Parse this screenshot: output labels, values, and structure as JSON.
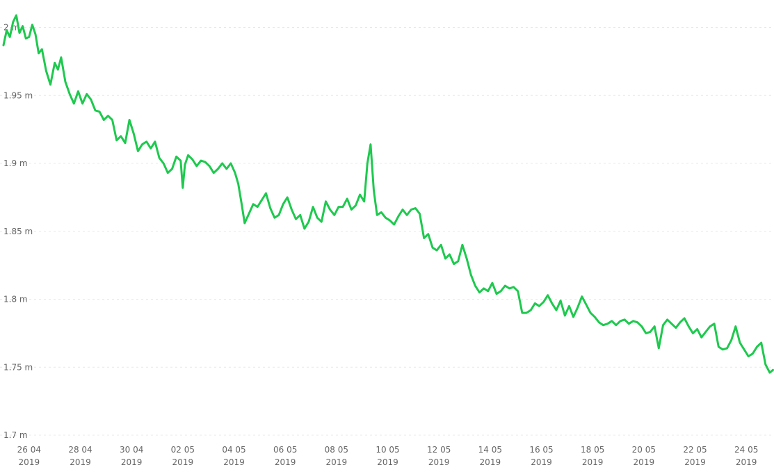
{
  "chart_data": {
    "type": "line",
    "title": "",
    "xlabel": "",
    "ylabel": "",
    "grid": true,
    "legend": "none",
    "colors": {
      "series": "#1ec94e",
      "grid": "#e8e8e8",
      "tick_text": "#666666"
    },
    "ylim": [
      1.7,
      2.01
    ],
    "xlim": [
      "2019-04-25",
      "2019-05-25"
    ],
    "y_ticks": [
      {
        "value": 1.7,
        "label": "1.7 m"
      },
      {
        "value": 1.75,
        "label": "1.75 m"
      },
      {
        "value": 1.8,
        "label": "1.8 m"
      },
      {
        "value": 1.85,
        "label": "1.85 m"
      },
      {
        "value": 1.9,
        "label": "1.9 m"
      },
      {
        "value": 1.95,
        "label": "1.95 m"
      },
      {
        "value": 2.0,
        "label": "2 m"
      }
    ],
    "x_ticks": [
      {
        "date": "2019-04-26",
        "day_month": "26 04",
        "year": "2019"
      },
      {
        "date": "2019-04-28",
        "day_month": "28 04",
        "year": "2019"
      },
      {
        "date": "2019-04-30",
        "day_month": "30 04",
        "year": "2019"
      },
      {
        "date": "2019-05-02",
        "day_month": "02 05",
        "year": "2019"
      },
      {
        "date": "2019-05-04",
        "day_month": "04 05",
        "year": "2019"
      },
      {
        "date": "2019-05-06",
        "day_month": "06 05",
        "year": "2019"
      },
      {
        "date": "2019-05-08",
        "day_month": "08 05",
        "year": "2019"
      },
      {
        "date": "2019-05-10",
        "day_month": "10 05",
        "year": "2019"
      },
      {
        "date": "2019-05-12",
        "day_month": "12 05",
        "year": "2019"
      },
      {
        "date": "2019-05-14",
        "day_month": "14 05",
        "year": "2019"
      },
      {
        "date": "2019-05-16",
        "day_month": "16 05",
        "year": "2019"
      },
      {
        "date": "2019-05-18",
        "day_month": "18 05",
        "year": "2019"
      },
      {
        "date": "2019-05-20",
        "day_month": "20 05",
        "year": "2019"
      },
      {
        "date": "2019-05-22",
        "day_month": "22 05",
        "year": "2019"
      },
      {
        "date": "2019-05-24",
        "day_month": "24 05",
        "year": "2019"
      }
    ],
    "series": [
      {
        "x": [
          "2019-04-25 00:00",
          "2019-04-25 03:00",
          "2019-04-25 06:00",
          "2019-04-25 09:00",
          "2019-04-25 12:00",
          "2019-04-25 15:00",
          "2019-04-25 18:00",
          "2019-04-25 21:00",
          "2019-04-26 00:00",
          "2019-04-26 03:00",
          "2019-04-26 06:00",
          "2019-04-26 09:00",
          "2019-04-26 12:00",
          "2019-04-26 16:00",
          "2019-04-26 20:00",
          "2019-04-27 00:00",
          "2019-04-27 03:00",
          "2019-04-27 06:00",
          "2019-04-27 10:00",
          "2019-04-27 14:00",
          "2019-04-27 18:00",
          "2019-04-27 22:00",
          "2019-04-28 02:00",
          "2019-04-28 06:00",
          "2019-04-28 10:00",
          "2019-04-28 14:00",
          "2019-04-28 18:00",
          "2019-04-28 22:00",
          "2019-04-29 02:00",
          "2019-04-29 06:00",
          "2019-04-29 10:00",
          "2019-04-29 14:00",
          "2019-04-29 18:00",
          "2019-04-29 22:00",
          "2019-04-30 02:00",
          "2019-04-30 06:00",
          "2019-04-30 10:00",
          "2019-04-30 14:00",
          "2019-04-30 18:00",
          "2019-04-30 22:00",
          "2019-05-01 02:00",
          "2019-05-01 06:00",
          "2019-05-01 10:00",
          "2019-05-01 14:00",
          "2019-05-01 18:00",
          "2019-05-01 22:00",
          "2019-05-02 00:00",
          "2019-05-02 02:00",
          "2019-05-02 05:00",
          "2019-05-02 09:00",
          "2019-05-02 13:00",
          "2019-05-02 17:00",
          "2019-05-02 21:00",
          "2019-05-03 01:00",
          "2019-05-03 05:00",
          "2019-05-03 09:00",
          "2019-05-03 13:00",
          "2019-05-03 17:00",
          "2019-05-03 21:00",
          "2019-05-04 01:00",
          "2019-05-04 04:00",
          "2019-05-04 07:00",
          "2019-05-04 10:00",
          "2019-05-04 14:00",
          "2019-05-04 18:00",
          "2019-05-04 22:00",
          "2019-05-05 02:00",
          "2019-05-05 06:00",
          "2019-05-05 10:00",
          "2019-05-05 14:00",
          "2019-05-05 18:00",
          "2019-05-05 22:00",
          "2019-05-06 02:00",
          "2019-05-06 06:00",
          "2019-05-06 10:00",
          "2019-05-06 14:00",
          "2019-05-06 18:00",
          "2019-05-06 22:00",
          "2019-05-07 02:00",
          "2019-05-07 06:00",
          "2019-05-07 10:00",
          "2019-05-07 14:00",
          "2019-05-07 18:00",
          "2019-05-07 22:00",
          "2019-05-08 02:00",
          "2019-05-08 06:00",
          "2019-05-08 10:00",
          "2019-05-08 14:00",
          "2019-05-08 18:00",
          "2019-05-08 22:00",
          "2019-05-09 02:00",
          "2019-05-09 05:00",
          "2019-05-09 08:00",
          "2019-05-09 11:00",
          "2019-05-09 14:00",
          "2019-05-09 18:00",
          "2019-05-09 22:00",
          "2019-05-10 02:00",
          "2019-05-10 06:00",
          "2019-05-10 10:00",
          "2019-05-10 14:00",
          "2019-05-10 18:00",
          "2019-05-10 22:00",
          "2019-05-11 02:00",
          "2019-05-11 06:00",
          "2019-05-11 10:00",
          "2019-05-11 14:00",
          "2019-05-11 18:00",
          "2019-05-11 22:00",
          "2019-05-12 02:00",
          "2019-05-12 06:00",
          "2019-05-12 10:00",
          "2019-05-12 14:00",
          "2019-05-12 18:00",
          "2019-05-12 22:00",
          "2019-05-13 02:00",
          "2019-05-13 06:00",
          "2019-05-13 10:00",
          "2019-05-13 14:00",
          "2019-05-13 18:00",
          "2019-05-13 22:00",
          "2019-05-14 02:00",
          "2019-05-14 06:00",
          "2019-05-14 10:00",
          "2019-05-14 14:00",
          "2019-05-14 18:00",
          "2019-05-14 22:00",
          "2019-05-15 02:00",
          "2019-05-15 06:00",
          "2019-05-15 10:00",
          "2019-05-15 14:00",
          "2019-05-15 18:00",
          "2019-05-15 22:00",
          "2019-05-16 02:00",
          "2019-05-16 06:00",
          "2019-05-16 10:00",
          "2019-05-16 14:00",
          "2019-05-16 18:00",
          "2019-05-16 22:00",
          "2019-05-17 02:00",
          "2019-05-17 06:00",
          "2019-05-17 10:00",
          "2019-05-17 14:00",
          "2019-05-17 18:00",
          "2019-05-17 22:00",
          "2019-05-18 02:00",
          "2019-05-18 06:00",
          "2019-05-18 10:00",
          "2019-05-18 14:00",
          "2019-05-18 18:00",
          "2019-05-18 22:00",
          "2019-05-19 02:00",
          "2019-05-19 06:00",
          "2019-05-19 10:00",
          "2019-05-19 14:00",
          "2019-05-19 18:00",
          "2019-05-19 22:00",
          "2019-05-20 02:00",
          "2019-05-20 06:00",
          "2019-05-20 10:00",
          "2019-05-20 14:00",
          "2019-05-20 18:00",
          "2019-05-20 22:00",
          "2019-05-21 02:00",
          "2019-05-21 06:00",
          "2019-05-21 10:00",
          "2019-05-21 14:00",
          "2019-05-21 18:00",
          "2019-05-21 22:00",
          "2019-05-22 02:00",
          "2019-05-22 06:00",
          "2019-05-22 10:00",
          "2019-05-22 14:00",
          "2019-05-22 18:00",
          "2019-05-22 22:00",
          "2019-05-23 02:00",
          "2019-05-23 06:00",
          "2019-05-23 10:00",
          "2019-05-23 14:00",
          "2019-05-23 18:00",
          "2019-05-23 22:00",
          "2019-05-24 02:00",
          "2019-05-24 06:00",
          "2019-05-24 10:00",
          "2019-05-24 14:00",
          "2019-05-24 18:00",
          "2019-05-24 22:00",
          "2019-05-25 01:00"
        ],
        "y": [
          1.987,
          1.998,
          1.993,
          2.004,
          2.009,
          1.996,
          2.001,
          1.992,
          1.993,
          2.002,
          1.995,
          1.981,
          1.984,
          1.968,
          1.958,
          1.974,
          1.969,
          1.978,
          1.96,
          1.951,
          1.944,
          1.953,
          1.944,
          1.951,
          1.947,
          1.939,
          1.938,
          1.932,
          1.935,
          1.932,
          1.917,
          1.92,
          1.915,
          1.932,
          1.922,
          1.909,
          1.914,
          1.916,
          1.911,
          1.916,
          1.904,
          1.9,
          1.893,
          1.896,
          1.905,
          1.902,
          1.882,
          1.899,
          1.906,
          1.903,
          1.898,
          1.902,
          1.901,
          1.898,
          1.893,
          1.896,
          1.9,
          1.896,
          1.9,
          1.893,
          1.885,
          1.871,
          1.856,
          1.863,
          1.87,
          1.868,
          1.873,
          1.878,
          1.867,
          1.86,
          1.862,
          1.87,
          1.875,
          1.866,
          1.859,
          1.862,
          1.852,
          1.857,
          1.868,
          1.86,
          1.857,
          1.872,
          1.866,
          1.862,
          1.868,
          1.868,
          1.874,
          1.866,
          1.869,
          1.877,
          1.872,
          1.9,
          1.914,
          1.88,
          1.862,
          1.864,
          1.86,
          1.858,
          1.855,
          1.861,
          1.866,
          1.862,
          1.866,
          1.867,
          1.863,
          1.845,
          1.848,
          1.838,
          1.836,
          1.84,
          1.83,
          1.833,
          1.826,
          1.828,
          1.84,
          1.83,
          1.818,
          1.81,
          1.805,
          1.808,
          1.806,
          1.812,
          1.804,
          1.806,
          1.81,
          1.808,
          1.809,
          1.806,
          1.79,
          1.79,
          1.792,
          1.797,
          1.795,
          1.798,
          1.803,
          1.797,
          1.792,
          1.799,
          1.788,
          1.795,
          1.787,
          1.794,
          1.802,
          1.796,
          1.79,
          1.787,
          1.783,
          1.781,
          1.782,
          1.784,
          1.781,
          1.784,
          1.785,
          1.782,
          1.784,
          1.783,
          1.78,
          1.775,
          1.776,
          1.78,
          1.764,
          1.781,
          1.785,
          1.782,
          1.779,
          1.783,
          1.786,
          1.78,
          1.775,
          1.778,
          1.772,
          1.776,
          1.78,
          1.782,
          1.765,
          1.763,
          1.764,
          1.77,
          1.78,
          1.768,
          1.763,
          1.758,
          1.76,
          1.765,
          1.768,
          1.752,
          1.746,
          1.748
        ]
      }
    ]
  }
}
